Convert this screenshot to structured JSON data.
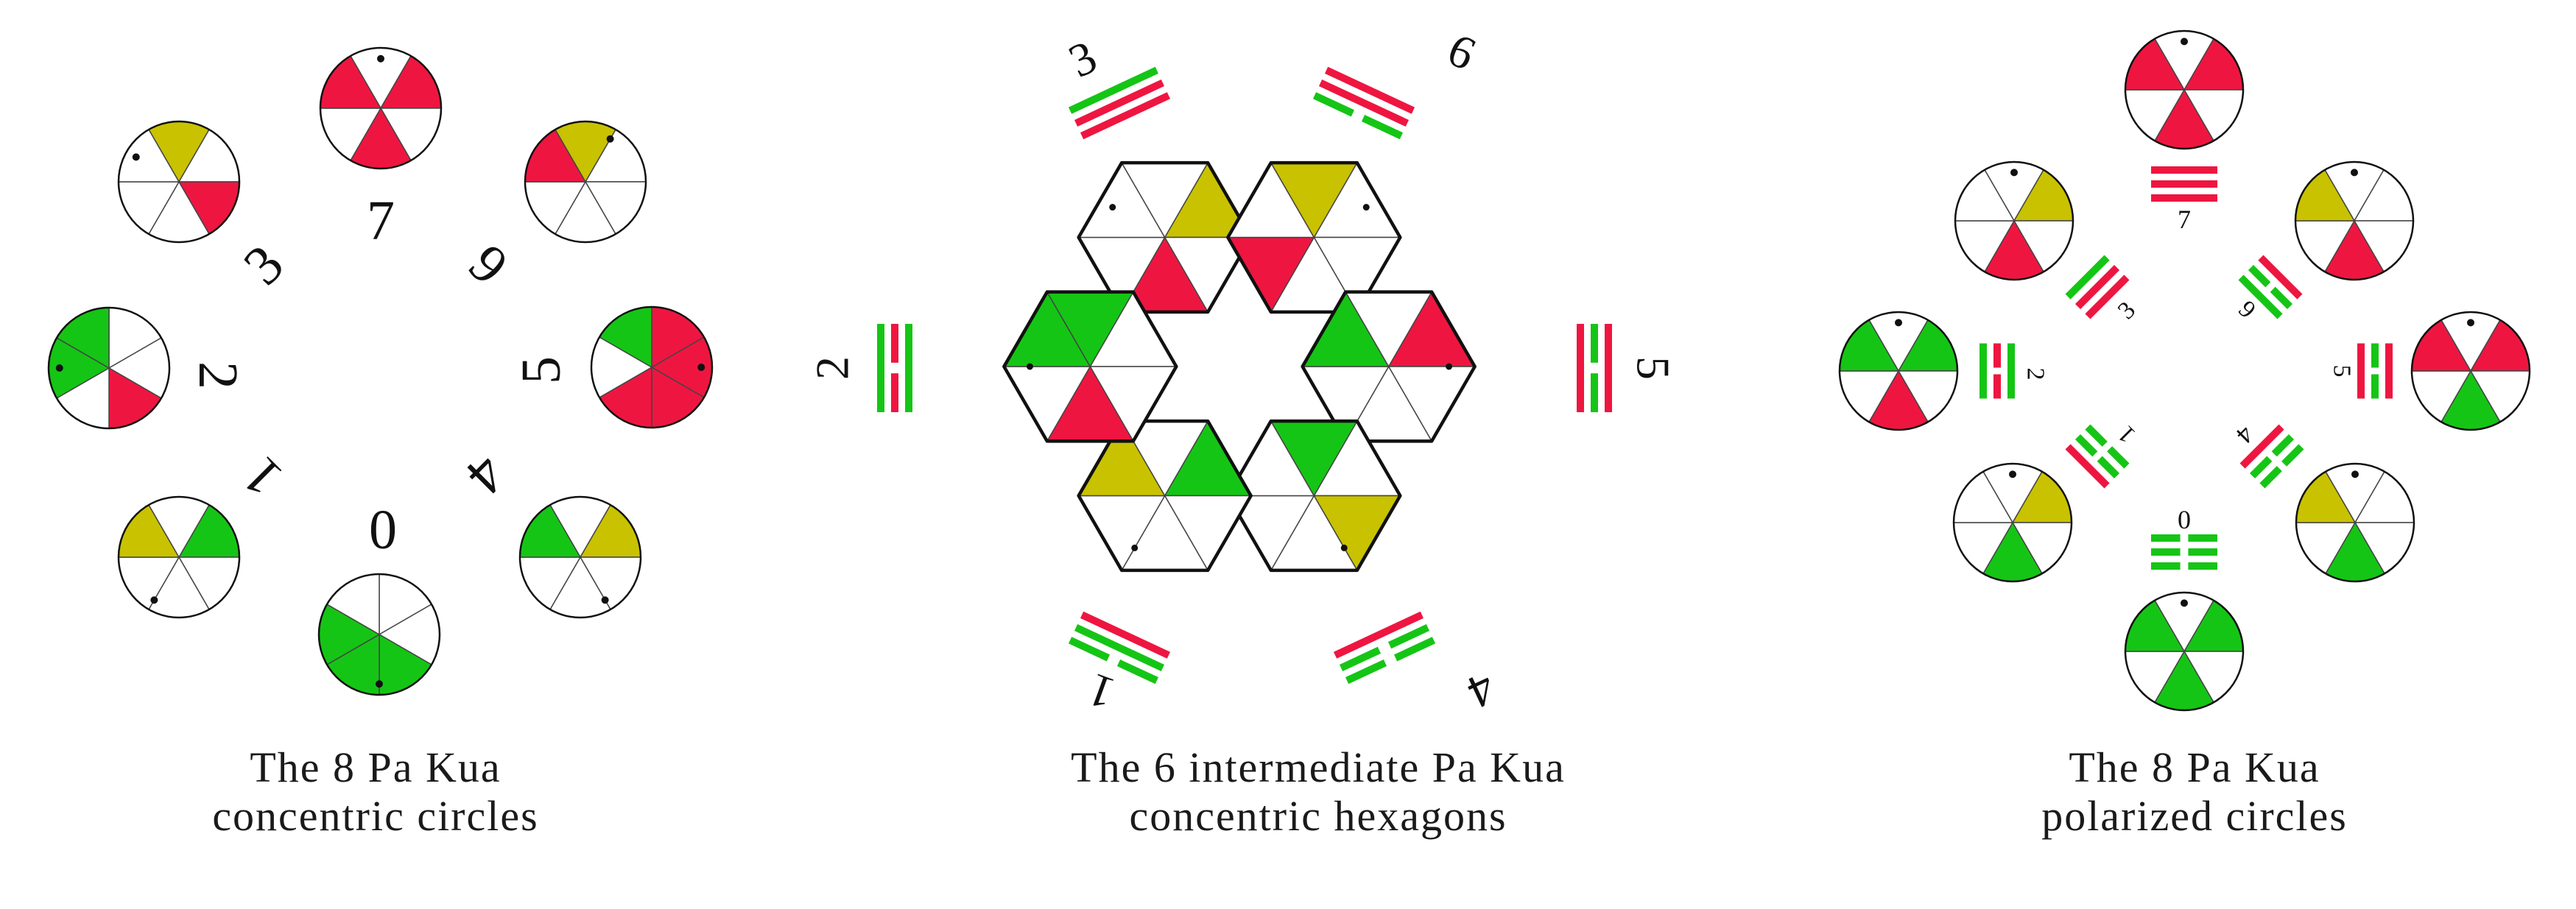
{
  "colors": {
    "red": "#ee1640",
    "green": "#15c515",
    "olive": "#c9c200",
    "outline": "#111111",
    "thin": "#444444"
  },
  "panels": [
    {
      "key": "concentric-circles",
      "caption": [
        "The 8 Pa Kua",
        "concentric circles"
      ],
      "numbers": [
        "7",
        "6",
        "5",
        "4",
        "0",
        "1",
        "2",
        "3"
      ]
    },
    {
      "key": "intermediate-hexagons",
      "caption": [
        "The 6 intermediate Pa Kua",
        "concentric hexagons"
      ],
      "numbers": [
        "3",
        "6",
        "5",
        "4",
        "1",
        "2"
      ]
    },
    {
      "key": "polarized-circles",
      "caption": [
        "The 8 Pa Kua",
        "polarized circles"
      ],
      "numbers": [
        "7",
        "6",
        "5",
        "4",
        "0",
        "1",
        "2",
        "3"
      ]
    }
  ]
}
